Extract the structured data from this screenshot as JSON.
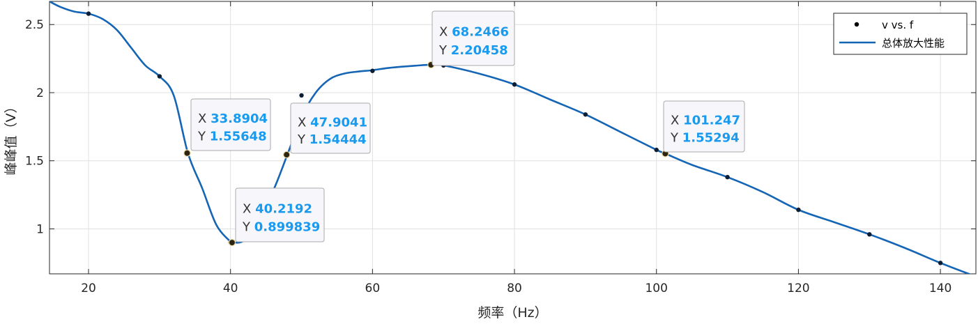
{
  "chart_data": {
    "type": "line",
    "xlabel": "频率（Hz）",
    "ylabel": "峰峰值（V）",
    "xlim": [
      14.5,
      145
    ],
    "ylim": [
      0.67,
      2.67
    ],
    "xticks": [
      20,
      40,
      60,
      80,
      100,
      120,
      140
    ],
    "yticks": [
      1,
      1.5,
      2,
      2.5
    ],
    "grid": true,
    "legend_position": "top-right",
    "colors": {
      "line": "#1565b5",
      "markers": "#0c1e33",
      "highlight_fill": "#2e2510",
      "datatip_value": "#1a9aee",
      "grid": "#e0e0e0",
      "axes": "#262626"
    },
    "series": [
      {
        "name": "v vs. f",
        "style": "markers",
        "x": [
          20,
          30,
          40,
          50,
          60,
          70,
          80,
          90,
          100,
          110,
          120,
          130,
          140
        ],
        "y": [
          2.58,
          2.12,
          0.9,
          1.98,
          2.16,
          2.2,
          2.06,
          1.84,
          1.58,
          1.38,
          1.14,
          0.96,
          0.75
        ]
      },
      {
        "name": "总体放大性能",
        "style": "line",
        "x": [
          14.5,
          16,
          18,
          20,
          22,
          24,
          26,
          28,
          30,
          32,
          34,
          36,
          38,
          40,
          40.2,
          42,
          44,
          46,
          48,
          50,
          52,
          54,
          56,
          58,
          60,
          62,
          64,
          66,
          68.25,
          70,
          75,
          80,
          85,
          90,
          95,
          100,
          101.25,
          105,
          110,
          115,
          120,
          125,
          130,
          135,
          140,
          144.5
        ],
        "y": [
          2.67,
          2.63,
          2.595,
          2.58,
          2.54,
          2.46,
          2.33,
          2.2,
          2.12,
          1.98,
          1.556,
          1.3,
          1.03,
          0.905,
          0.9,
          0.92,
          1.1,
          1.28,
          1.544,
          1.82,
          2.0,
          2.1,
          2.14,
          2.155,
          2.165,
          2.18,
          2.19,
          2.198,
          2.205,
          2.2,
          2.14,
          2.06,
          1.95,
          1.84,
          1.71,
          1.58,
          1.553,
          1.47,
          1.38,
          1.27,
          1.14,
          1.05,
          0.96,
          0.86,
          0.75,
          0.66
        ]
      }
    ],
    "datatips": [
      {
        "x": 33.8904,
        "y": 1.55648,
        "x_text": "33.8904",
        "y_text": "1.55648",
        "x_key": "X",
        "y_key": "Y"
      },
      {
        "x": 40.2192,
        "y": 0.899839,
        "x_text": "40.2192",
        "y_text": "0.899839",
        "x_key": "X",
        "y_key": "Y"
      },
      {
        "x": 47.9041,
        "y": 1.54444,
        "x_text": "47.9041",
        "y_text": "1.54444",
        "x_key": "X",
        "y_key": "Y"
      },
      {
        "x": 68.2466,
        "y": 2.20458,
        "x_text": "68.2466",
        "y_text": "2.20458",
        "x_key": "X",
        "y_key": "Y"
      },
      {
        "x": 101.247,
        "y": 1.55294,
        "x_text": "101.247",
        "y_text": "1.55294",
        "x_key": "X",
        "y_key": "Y"
      }
    ]
  }
}
